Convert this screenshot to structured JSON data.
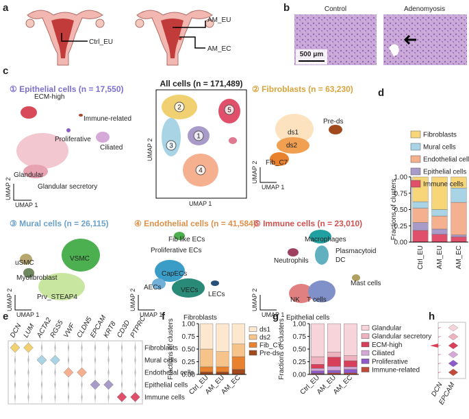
{
  "panel_labels": [
    "a",
    "b",
    "c",
    "d",
    "e",
    "f",
    "g",
    "h"
  ],
  "panel_a": {
    "labels": [
      "Ctrl_EU",
      "AM_EU",
      "AM_EC"
    ]
  },
  "panel_b": {
    "titles": [
      "Control",
      "Adenomyosis"
    ],
    "scale_bar": "500 μm"
  },
  "panel_c": {
    "epithelial": {
      "title": "① Epithelial cells (n = 17,550)",
      "labels": [
        "ECM-high",
        "Immune-related",
        "Proliferative",
        "Ciliated",
        "Glandular",
        "Glandular secretory"
      ],
      "x_axis": "UMAP 1",
      "y_axis": "UMAP 2"
    },
    "all_cells": {
      "title": "All cells (n = 171,489)",
      "cluster_numbers": [
        "1",
        "2",
        "3",
        "4",
        "5"
      ],
      "x_axis": "UMAP 1",
      "y_axis": "UMAP 2"
    },
    "fibroblasts": {
      "title": "② Fibroblasts (n = 63,230)",
      "labels": [
        "ds1",
        "Pre-ds",
        "ds2",
        "Fib_C7"
      ],
      "x_axis": "UMAP 1",
      "y_axis": "UMAP 2"
    },
    "mural": {
      "title": "③ Mural cells (n = 26,115)",
      "labels": [
        "VSMC",
        "uSMC",
        "Myofibroblast",
        "Prv_STEAP4"
      ],
      "x_axis": "UMAP 1",
      "y_axis": "UMAP 2"
    },
    "endothelial": {
      "title": "④ Endothelial cells (n = 41,584)",
      "labels": [
        "Fib like ECs",
        "Proliferative ECs",
        "CapECs",
        "AECs",
        "VECs",
        "LECs"
      ],
      "x_axis": "UMAP 1",
      "y_axis": "UMAP 2"
    },
    "immune": {
      "title": "⑤ Immune cells (n = 23,010)",
      "labels": [
        "Macrophages",
        "Plasmacytoid",
        "DC",
        "Neutrophils",
        "Mast cells",
        "NK",
        "T cells"
      ],
      "x_axis": "UMAP 1",
      "y_axis": "UMAP 2"
    }
  },
  "panel_e": {
    "genes": [
      "DCN",
      "LUM",
      "ACTA2",
      "RGS5",
      "VWF",
      "CLDN5",
      "EPCAM",
      "KRT8",
      "CD3D",
      "PTPRC"
    ],
    "cell_types": [
      "Fibroblasts",
      "Mural cells",
      "Endothelial cells",
      "Epithelial cells",
      "Immune cells"
    ]
  },
  "panel_h": {
    "genes": [
      "DCN",
      "EPCAM"
    ]
  },
  "chart_data": [
    {
      "type": "stacked_bar",
      "ylabel": "Fractions of clusters",
      "categories": [
        "Ctrl_EU",
        "AM_EU",
        "AM_EC"
      ],
      "series": [
        {
          "name": "Fibroblasts",
          "color": "#f7d67a",
          "values": [
            0.38,
            0.5,
            0.17
          ]
        },
        {
          "name": "Mural cells",
          "color": "#a8d4e6",
          "values": [
            0.1,
            0.1,
            0.22
          ]
        },
        {
          "name": "Endothelial cells",
          "color": "#f4b08f",
          "values": [
            0.22,
            0.2,
            0.5
          ]
        },
        {
          "name": "Epithelial cells",
          "color": "#a89ac9",
          "values": [
            0.12,
            0.08,
            0.03
          ]
        },
        {
          "name": "Immune cells",
          "color": "#e0506a",
          "values": [
            0.18,
            0.12,
            0.08
          ]
        }
      ],
      "ylim": [
        0,
        1
      ],
      "yticks": [
        {
          "value": 0,
          "label": "0.00"
        },
        0.25,
        {
          "value": 0.5,
          "label": "0.50"
        },
        0.75,
        {
          "value": 1,
          "label": "1.00"
        }
      ],
      "legend": "top"
    },
    {
      "type": "stacked_bar",
      "title": "Fibroblasts",
      "ylabel": "Fractions of clusters",
      "categories": [
        "Ctrl_EU",
        "AM_EU",
        "AM_EC"
      ],
      "series": [
        {
          "name": "ds1",
          "color": "#fde8cf",
          "values": [
            0.5,
            0.55,
            0.4
          ]
        },
        {
          "name": "ds2",
          "color": "#f6c48a",
          "values": [
            0.35,
            0.3,
            0.25
          ]
        },
        {
          "name": "Fib_C7",
          "color": "#e8822e",
          "values": [
            0.1,
            0.1,
            0.25
          ]
        },
        {
          "name": "Pre-ds",
          "color": "#a04a1e",
          "values": [
            0.05,
            0.05,
            0.1
          ]
        }
      ],
      "ylim": [
        0,
        1
      ],
      "yticks": [
        {
          "value": 0,
          "label": "0.00"
        },
        0.25,
        {
          "value": 0.5,
          "label": "0.50"
        },
        0.75,
        {
          "value": 1,
          "label": "1.00"
        }
      ],
      "legend": "right"
    },
    {
      "type": "stacked_bar",
      "title": "Epithelial cells",
      "ylabel": "Fractions of clusters",
      "categories": [
        "Ctrl_EU",
        "AM_EU",
        "AM_EC"
      ],
      "series": [
        {
          "name": "Glandular",
          "color": "#f7d3da",
          "values": [
            0.65,
            0.56,
            0.63
          ]
        },
        {
          "name": "Glandular secretory",
          "color": "#efb3c0",
          "values": [
            0.15,
            0.1,
            0.1
          ]
        },
        {
          "name": "ECM-high",
          "color": "#d8405a",
          "values": [
            0.08,
            0.18,
            0.12
          ]
        },
        {
          "name": "Ciliated",
          "color": "#d6a8d8",
          "values": [
            0.05,
            0.08,
            0.05
          ]
        },
        {
          "name": "Proliferative",
          "color": "#8e5ac8",
          "values": [
            0.05,
            0.05,
            0.07
          ]
        },
        {
          "name": "Immune-related",
          "color": "#c04a3a",
          "values": [
            0.02,
            0.03,
            0.03
          ]
        }
      ],
      "ylim": [
        0,
        1
      ],
      "yticks": [
        {
          "value": 0,
          "label": "0.00"
        },
        0.25,
        {
          "value": 0.5,
          "label": "0.50"
        },
        0.75,
        {
          "value": 1,
          "label": "1.00"
        }
      ],
      "legend": "right"
    }
  ]
}
